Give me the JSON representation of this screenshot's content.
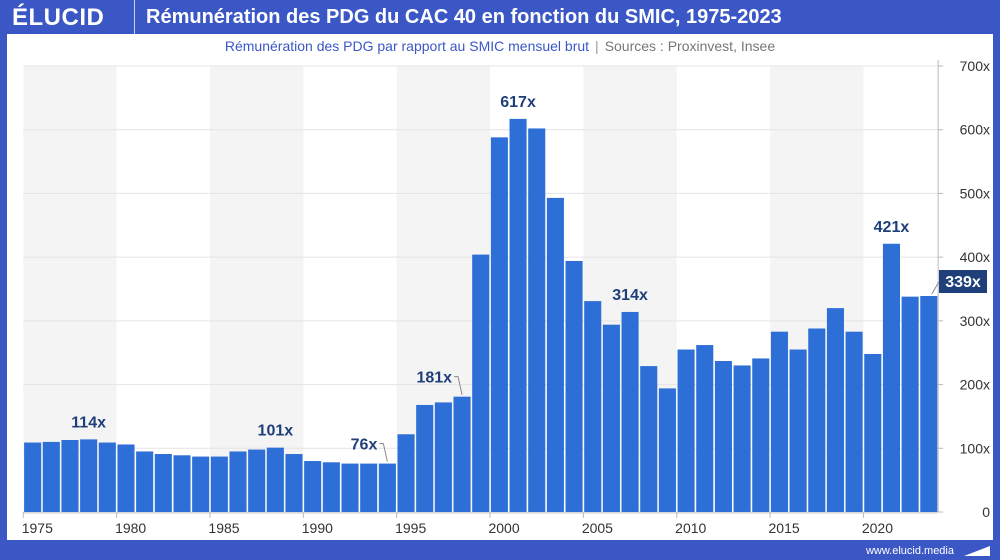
{
  "header": {
    "logo": "ÉLUCID",
    "title": "Rémunération des PDG du CAC 40 en fonction du SMIC, 1975-2023"
  },
  "subtitle": {
    "text": "Rémunération des PDG par rapport au SMIC mensuel brut",
    "sources": "Sources : Proxinvest, Insee"
  },
  "footer": {
    "url": "www.elucid.media"
  },
  "colors": {
    "bar": "#2d6fd6",
    "frame": "#3b57c6",
    "label": "#1f3f7a",
    "highlight_bg": "#1f3f7a"
  },
  "chart_data": {
    "type": "bar",
    "title": "Rémunération des PDG du CAC 40 en fonction du SMIC, 1975-2023",
    "ylabel": "",
    "xlabel": "",
    "ylim": [
      0,
      700
    ],
    "yticks": [
      "0",
      "100x",
      "200x",
      "300x",
      "400x",
      "500x",
      "600x",
      "700x"
    ],
    "xticks": [
      "1975",
      "1980",
      "1985",
      "1990",
      "1995",
      "2000",
      "2005",
      "2010",
      "2015",
      "2020"
    ],
    "grid": true,
    "categories": [
      1975,
      1976,
      1977,
      1978,
      1979,
      1980,
      1981,
      1982,
      1983,
      1984,
      1985,
      1986,
      1987,
      1988,
      1989,
      1990,
      1991,
      1992,
      1993,
      1994,
      1995,
      1996,
      1997,
      1998,
      1999,
      2000,
      2001,
      2002,
      2003,
      2004,
      2005,
      2006,
      2007,
      2008,
      2009,
      2010,
      2011,
      2012,
      2013,
      2014,
      2015,
      2016,
      2017,
      2018,
      2019,
      2020,
      2021,
      2022,
      2023
    ],
    "values": [
      109,
      110,
      113,
      114,
      109,
      106,
      95,
      91,
      89,
      87,
      87,
      95,
      98,
      101,
      91,
      80,
      78,
      76,
      76,
      76,
      122,
      168,
      172,
      181,
      404,
      588,
      617,
      602,
      493,
      394,
      331,
      294,
      314,
      229,
      194,
      255,
      262,
      237,
      230,
      241,
      283,
      255,
      288,
      320,
      283,
      248,
      421,
      338,
      339
    ],
    "annotations": [
      {
        "year": 1978,
        "text": "114x"
      },
      {
        "year": 1988,
        "text": "101x"
      },
      {
        "year": 1994,
        "text": "76x"
      },
      {
        "year": 1998,
        "text": "181x"
      },
      {
        "year": 2001,
        "text": "617x"
      },
      {
        "year": 2007,
        "text": "314x"
      },
      {
        "year": 2021,
        "text": "421x"
      },
      {
        "year": 2023,
        "text": "339x",
        "highlight": true
      }
    ]
  }
}
